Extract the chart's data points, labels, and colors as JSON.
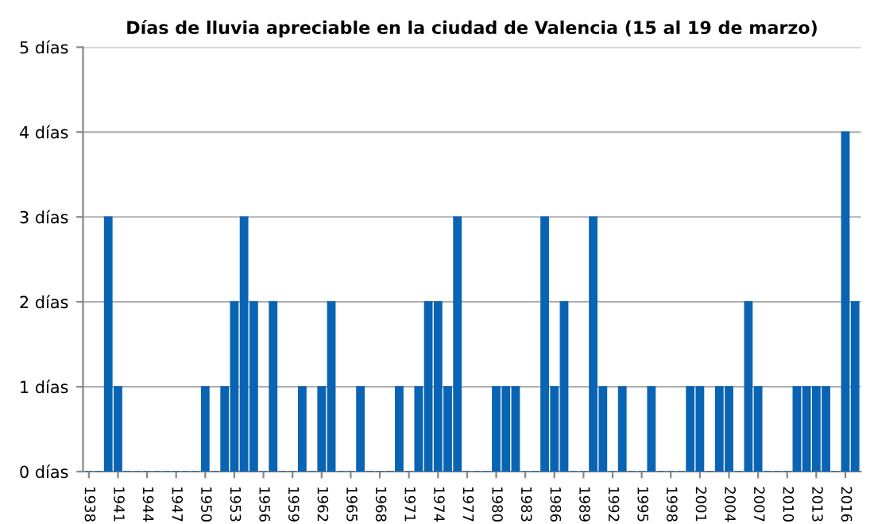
{
  "chart_data": {
    "type": "bar",
    "title": "Días de lluvia apreciable en la ciudad de Valencia (15 al 19 de marzo)",
    "categories": [
      "1938",
      null,
      null,
      "1941",
      null,
      null,
      "1944",
      null,
      null,
      "1947",
      null,
      null,
      "1950",
      null,
      null,
      "1953",
      null,
      null,
      "1956",
      null,
      null,
      "1959",
      null,
      null,
      "1962",
      null,
      null,
      "1965",
      null,
      null,
      "1968",
      null,
      null,
      "1971",
      null,
      null,
      "1974",
      null,
      null,
      "1977",
      null,
      null,
      "1980",
      null,
      null,
      "1983",
      null,
      null,
      "1986",
      null,
      null,
      "1989",
      null,
      null,
      "1992",
      null,
      null,
      "1995",
      null,
      null,
      "1998",
      null,
      null,
      "2001",
      null,
      null,
      "2004",
      null,
      null,
      "2007",
      null,
      null,
      "2010",
      null,
      null,
      "2013",
      null,
      null,
      "2016",
      null
    ],
    "values": [
      0,
      0,
      3,
      1,
      0,
      0,
      0,
      0,
      0,
      0,
      0,
      0,
      1,
      0,
      1,
      2,
      3,
      2,
      0,
      2,
      0,
      0,
      1,
      0,
      1,
      2,
      0,
      0,
      1,
      0,
      0,
      0,
      1,
      0,
      1,
      2,
      2,
      1,
      3,
      0,
      0,
      0,
      1,
      1,
      1,
      0,
      0,
      3,
      1,
      2,
      0,
      0,
      3,
      1,
      0,
      1,
      0,
      0,
      1,
      0,
      0,
      0,
      1,
      1,
      0,
      1,
      1,
      0,
      2,
      1,
      0,
      0,
      0,
      1,
      1,
      1,
      1,
      0,
      4,
      2
    ],
    "color": "#0a64b4",
    "ylim": [
      0,
      5
    ],
    "yticks": [
      {
        "value": 0,
        "label": "0 días"
      },
      {
        "value": 1,
        "label": "1 días"
      },
      {
        "value": 2,
        "label": "2 días"
      },
      {
        "value": 3,
        "label": "3 días"
      },
      {
        "value": 4,
        "label": "4 días"
      },
      {
        "value": 5,
        "label": "5 días"
      }
    ],
    "grid": "y"
  }
}
